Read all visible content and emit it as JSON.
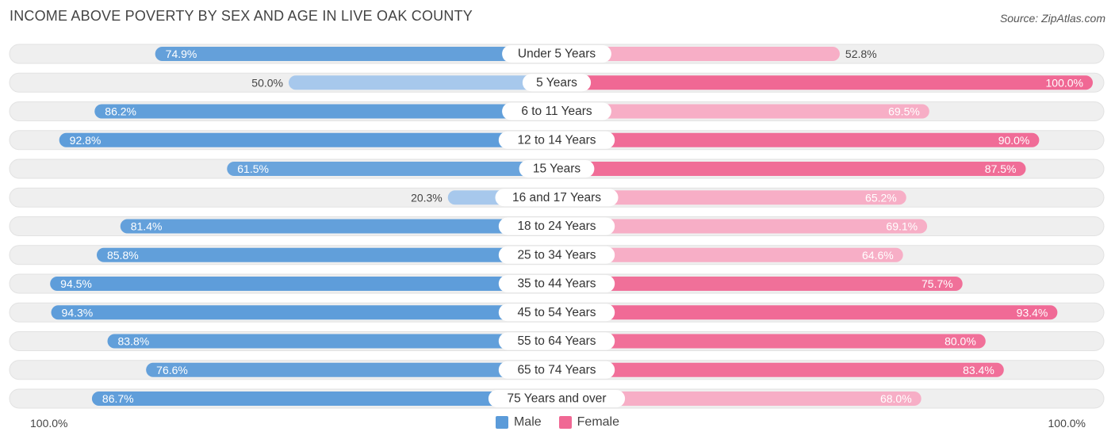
{
  "header": {
    "title": "INCOME ABOVE POVERTY BY SEX AND AGE IN LIVE OAK COUNTY",
    "source": "Source: ZipAtlas.com"
  },
  "axis": {
    "left_label": "100.0%",
    "right_label": "100.0%"
  },
  "legend": {
    "male_label": "Male",
    "female_label": "Female"
  },
  "colors": {
    "male_dark": "#5b9bd9",
    "male_light": "#a7c8ec",
    "female_dark": "#f06894",
    "female_light": "#f7aec6",
    "track": "#efefef"
  },
  "chart_data": {
    "type": "bar",
    "orientation": "horizontal-diverging",
    "title": "INCOME ABOVE POVERTY BY SEX AND AGE IN LIVE OAK COUNTY",
    "xlim": [
      -100,
      100
    ],
    "categories": [
      "Under 5 Years",
      "5 Years",
      "6 to 11 Years",
      "12 to 14 Years",
      "15 Years",
      "16 and 17 Years",
      "18 to 24 Years",
      "25 to 34 Years",
      "35 to 44 Years",
      "45 to 54 Years",
      "55 to 64 Years",
      "65 to 74 Years",
      "75 Years and over"
    ],
    "series": [
      {
        "name": "Male",
        "values": [
          74.9,
          50.0,
          86.2,
          92.8,
          61.5,
          20.3,
          81.4,
          85.8,
          94.5,
          94.3,
          83.8,
          76.6,
          86.7
        ],
        "labels": [
          "74.9%",
          "50.0%",
          "86.2%",
          "92.8%",
          "61.5%",
          "20.3%",
          "81.4%",
          "85.8%",
          "94.5%",
          "94.3%",
          "83.8%",
          "76.6%",
          "86.7%"
        ]
      },
      {
        "name": "Female",
        "values": [
          52.8,
          100.0,
          69.5,
          90.0,
          87.5,
          65.2,
          69.1,
          64.6,
          75.7,
          93.4,
          80.0,
          83.4,
          68.0
        ],
        "labels": [
          "52.8%",
          "100.0%",
          "69.5%",
          "90.0%",
          "87.5%",
          "65.2%",
          "69.1%",
          "64.6%",
          "75.7%",
          "93.4%",
          "80.0%",
          "83.4%",
          "68.0%"
        ]
      }
    ]
  }
}
